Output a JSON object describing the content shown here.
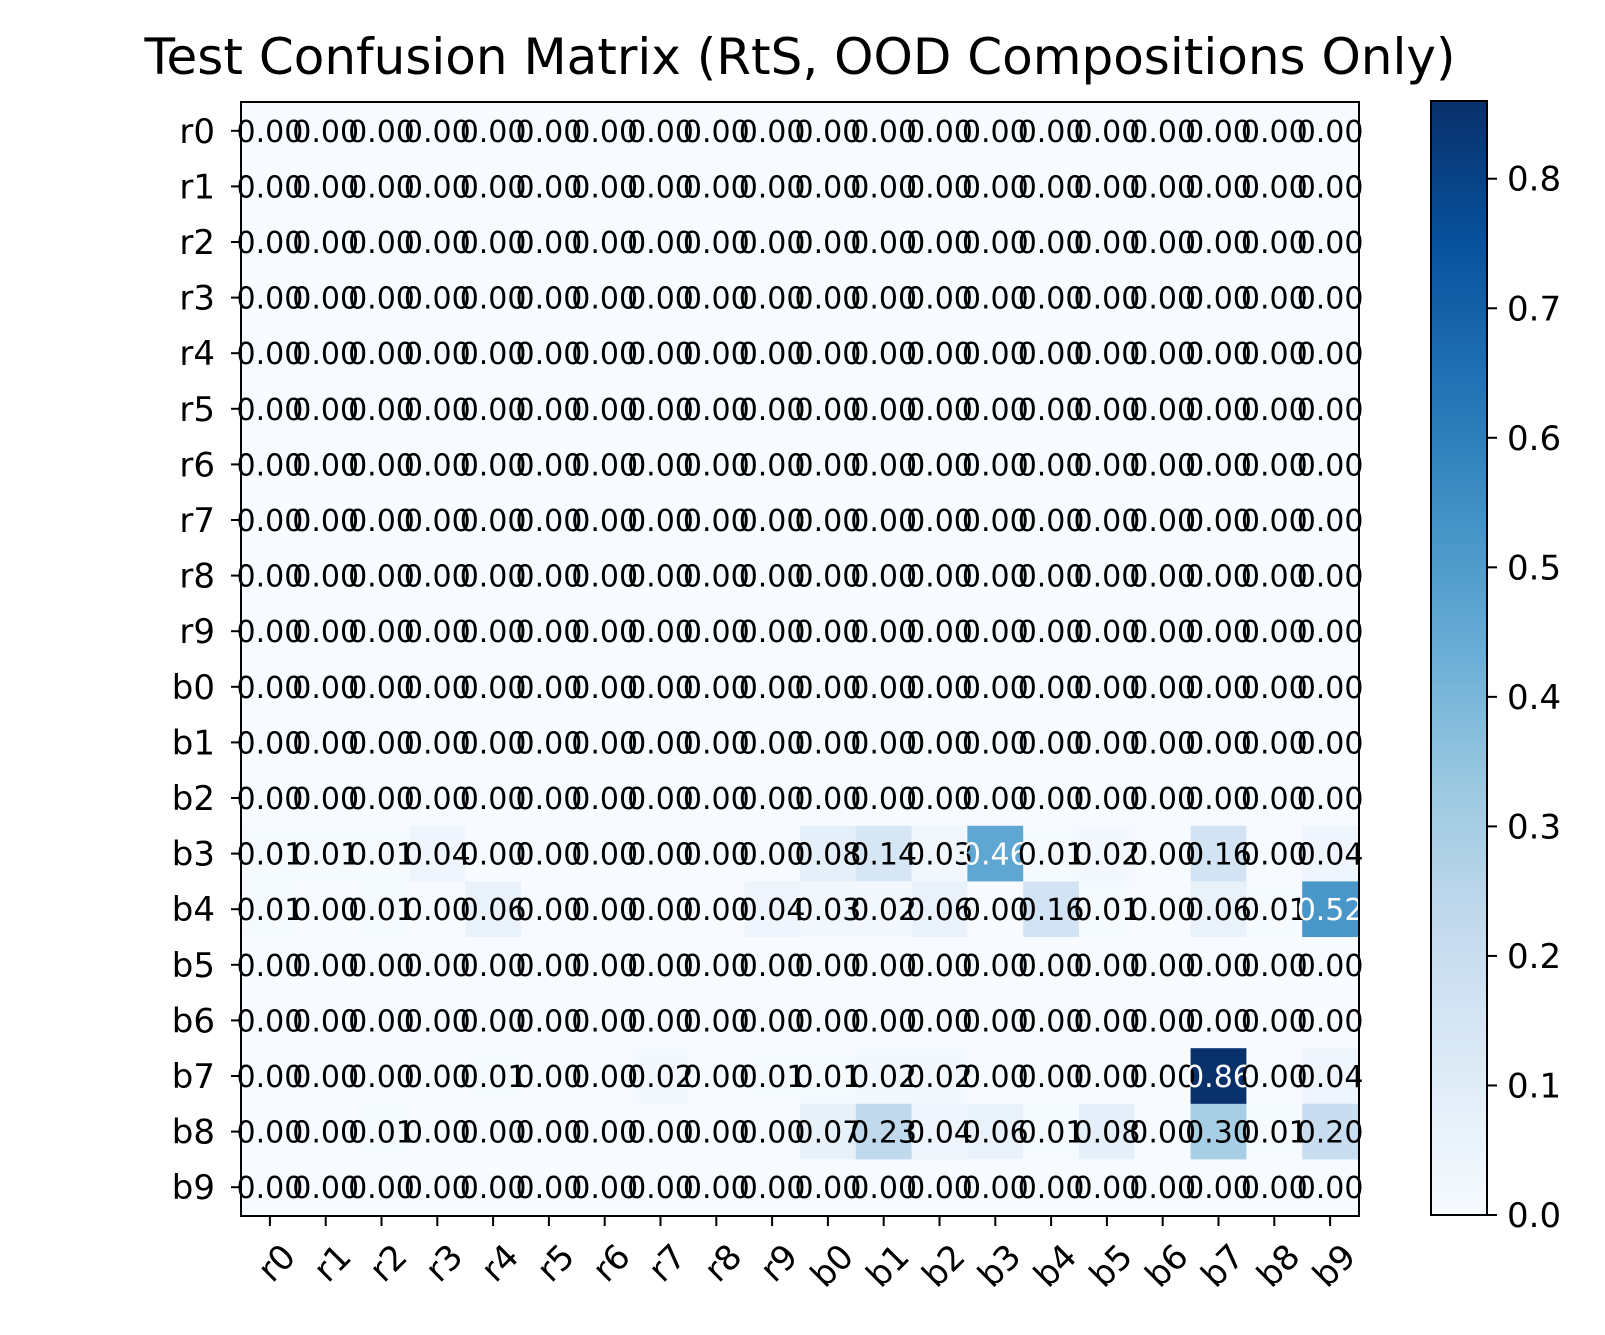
{
  "chart_data": {
    "type": "heatmap",
    "title": "Test Confusion Matrix (RtS, OOD Compositions Only)",
    "xlabel": "",
    "ylabel": "",
    "row_labels": [
      "r0",
      "r1",
      "r2",
      "r3",
      "r4",
      "r5",
      "r6",
      "r7",
      "r8",
      "r9",
      "b0",
      "b1",
      "b2",
      "b3",
      "b4",
      "b5",
      "b6",
      "b7",
      "b8",
      "b9"
    ],
    "col_labels": [
      "r0",
      "r1",
      "r2",
      "r3",
      "r4",
      "r5",
      "r6",
      "r7",
      "r8",
      "r9",
      "b0",
      "b1",
      "b2",
      "b3",
      "b4",
      "b5",
      "b6",
      "b7",
      "b8",
      "b9"
    ],
    "values": [
      [
        0,
        0,
        0,
        0,
        0,
        0,
        0,
        0,
        0,
        0,
        0,
        0,
        0,
        0,
        0,
        0,
        0,
        0,
        0,
        0
      ],
      [
        0,
        0,
        0,
        0,
        0,
        0,
        0,
        0,
        0,
        0,
        0,
        0,
        0,
        0,
        0,
        0,
        0,
        0,
        0,
        0
      ],
      [
        0,
        0,
        0,
        0,
        0,
        0,
        0,
        0,
        0,
        0,
        0,
        0,
        0,
        0,
        0,
        0,
        0,
        0,
        0,
        0
      ],
      [
        0,
        0,
        0,
        0,
        0,
        0,
        0,
        0,
        0,
        0,
        0,
        0,
        0,
        0,
        0,
        0,
        0,
        0,
        0,
        0
      ],
      [
        0,
        0,
        0,
        0,
        0,
        0,
        0,
        0,
        0,
        0,
        0,
        0,
        0,
        0,
        0,
        0,
        0,
        0,
        0,
        0
      ],
      [
        0,
        0,
        0,
        0,
        0,
        0,
        0,
        0,
        0,
        0,
        0,
        0,
        0,
        0,
        0,
        0,
        0,
        0,
        0,
        0
      ],
      [
        0,
        0,
        0,
        0,
        0,
        0,
        0,
        0,
        0,
        0,
        0,
        0,
        0,
        0,
        0,
        0,
        0,
        0,
        0,
        0
      ],
      [
        0,
        0,
        0,
        0,
        0,
        0,
        0,
        0,
        0,
        0,
        0,
        0,
        0,
        0,
        0,
        0,
        0,
        0,
        0,
        0
      ],
      [
        0,
        0,
        0,
        0,
        0,
        0,
        0,
        0,
        0,
        0,
        0,
        0,
        0,
        0,
        0,
        0,
        0,
        0,
        0,
        0
      ],
      [
        0,
        0,
        0,
        0,
        0,
        0,
        0,
        0,
        0,
        0,
        0,
        0,
        0,
        0,
        0,
        0,
        0,
        0,
        0,
        0
      ],
      [
        0,
        0,
        0,
        0,
        0,
        0,
        0,
        0,
        0,
        0,
        0,
        0,
        0,
        0,
        0,
        0,
        0,
        0,
        0,
        0
      ],
      [
        0,
        0,
        0,
        0,
        0,
        0,
        0,
        0,
        0,
        0,
        0,
        0,
        0,
        0,
        0,
        0,
        0,
        0,
        0,
        0
      ],
      [
        0,
        0,
        0,
        0,
        0,
        0,
        0,
        0,
        0,
        0,
        0,
        0,
        0,
        0,
        0,
        0,
        0,
        0,
        0,
        0
      ],
      [
        0.01,
        0.01,
        0.01,
        0.04,
        0.0,
        0.0,
        0.0,
        0.0,
        0.0,
        0.0,
        0.08,
        0.14,
        0.03,
        0.46,
        0.01,
        0.02,
        0.0,
        0.16,
        0.0,
        0.04
      ],
      [
        0.01,
        0.0,
        0.01,
        0.0,
        0.06,
        0.0,
        0.0,
        0.0,
        0.0,
        0.04,
        0.03,
        0.02,
        0.06,
        0.0,
        0.16,
        0.01,
        0.0,
        0.06,
        0.01,
        0.52
      ],
      [
        0,
        0,
        0,
        0,
        0,
        0,
        0,
        0,
        0,
        0,
        0,
        0,
        0,
        0,
        0,
        0,
        0,
        0,
        0,
        0
      ],
      [
        0,
        0,
        0,
        0,
        0,
        0,
        0,
        0,
        0,
        0,
        0,
        0,
        0,
        0,
        0,
        0,
        0,
        0,
        0,
        0
      ],
      [
        0.0,
        0.0,
        0.0,
        0.0,
        0.01,
        0.0,
        0.0,
        0.02,
        0.0,
        0.01,
        0.01,
        0.02,
        0.02,
        0.0,
        0.0,
        0.0,
        0.0,
        0.86,
        0.0,
        0.04
      ],
      [
        0.0,
        0.0,
        0.01,
        0.0,
        0.0,
        0.0,
        0.0,
        0.0,
        0.0,
        0.0,
        0.07,
        0.23,
        0.04,
        0.06,
        0.01,
        0.08,
        0.0,
        0.3,
        0.01,
        0.2
      ],
      [
        0,
        0,
        0,
        0,
        0,
        0,
        0,
        0,
        0,
        0,
        0,
        0,
        0,
        0,
        0,
        0,
        0,
        0,
        0,
        0
      ]
    ],
    "cell_label_format": "2 decimals",
    "colormap": "Blues",
    "colormap_stops": [
      "#f7fbff",
      "#deebf7",
      "#c6dbef",
      "#9ecae1",
      "#6baed6",
      "#4292c6",
      "#2171b5",
      "#08519c",
      "#08306b"
    ],
    "vmin": 0.0,
    "vmax": 0.86,
    "colorbar_ticks": [
      0.0,
      0.1,
      0.2,
      0.3,
      0.4,
      0.5,
      0.6,
      0.7,
      0.8
    ],
    "colorbar_tick_labels": [
      "0.0",
      "0.1",
      "0.2",
      "0.3",
      "0.4",
      "0.5",
      "0.6",
      "0.7",
      "0.8"
    ],
    "grid": false,
    "colorbar_position": "right",
    "x_tick_rotation_deg": 45
  }
}
